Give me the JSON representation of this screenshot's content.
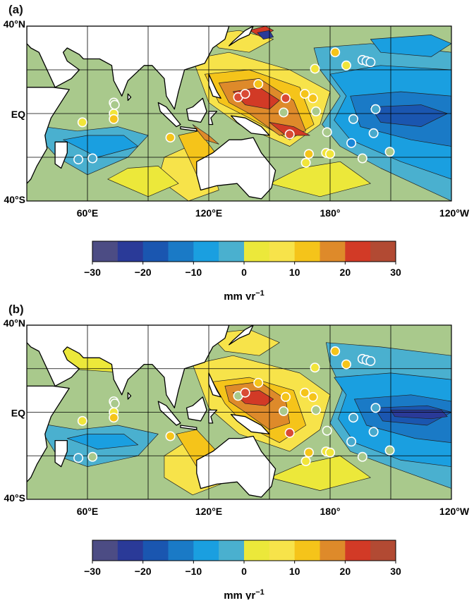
{
  "panels": [
    {
      "label": "(a)",
      "lat_labels": [
        "40°N",
        "EQ",
        "40°S"
      ],
      "lon_labels": [
        "60°E",
        "120°E",
        "180°",
        "120°W"
      ],
      "colorbar": {
        "ticks": [
          "−30",
          "−20",
          "−10",
          "0",
          "10",
          "20",
          "30"
        ],
        "unit_main": "mm yr",
        "unit_exp": "−1"
      },
      "stations": [
        {
          "lon": 55.5,
          "lat": -21,
          "color": "#48a9cd"
        },
        {
          "lon": 57.5,
          "lat": -4,
          "color": "#f1e53a"
        },
        {
          "lon": 62.5,
          "lat": -20.5,
          "color": "#48a9cd"
        },
        {
          "lon": 73,
          "lat": 5,
          "color": "#a9c98c"
        },
        {
          "lon": 73.5,
          "lat": 4,
          "color": "#a9c98c"
        },
        {
          "lon": 73,
          "lat": 0,
          "color": "#f1e53a"
        },
        {
          "lon": 73,
          "lat": -2.5,
          "color": "#f5c41a"
        },
        {
          "lon": 101,
          "lat": -11,
          "color": "#f5c41a"
        },
        {
          "lon": 134.5,
          "lat": 7.5,
          "color": "#d94a35"
        },
        {
          "lon": 138,
          "lat": 9,
          "color": "#d94a35"
        },
        {
          "lon": 144.5,
          "lat": 13.5,
          "color": "#f5c41a"
        },
        {
          "lon": 158,
          "lat": 7,
          "color": "#d94a35"
        },
        {
          "lon": 157,
          "lat": 0.5,
          "color": "#a9c98c"
        },
        {
          "lon": 160,
          "lat": -9.5,
          "color": "#d94a35"
        },
        {
          "lon": 167.5,
          "lat": 9,
          "color": "#f5c41a"
        },
        {
          "lon": 171.5,
          "lat": 7,
          "color": "#f5c41a"
        },
        {
          "lon": 169.5,
          "lat": -18.5,
          "color": "#f5c41a"
        },
        {
          "lon": 168,
          "lat": -22.5,
          "color": "#f1e53a"
        },
        {
          "lon": 173,
          "lat": 1,
          "color": "#a9c98c"
        },
        {
          "lon": 178.5,
          "lat": -8.5,
          "color": "#a9c98c"
        },
        {
          "lon": 178,
          "lat": -18,
          "color": "#f1e53a"
        },
        {
          "lon": 180,
          "lat": -18.5,
          "color": "#f1e53a"
        },
        {
          "lon": 172.5,
          "lat": 20.5,
          "color": "#f1e53a"
        },
        {
          "lon": 182.5,
          "lat": 28,
          "color": "#f5c41a"
        },
        {
          "lon": 188,
          "lat": 22,
          "color": "#f1e53a"
        },
        {
          "lon": 191.5,
          "lat": -2.5,
          "color": "#48a9cd"
        },
        {
          "lon": 190.5,
          "lat": -13.5,
          "color": "#1a86d8"
        },
        {
          "lon": 196,
          "lat": 24.5,
          "color": "#48a9cd"
        },
        {
          "lon": 198,
          "lat": 24,
          "color": "#48a9cd"
        },
        {
          "lon": 200,
          "lat": 23.5,
          "color": "#48a9cd"
        },
        {
          "lon": 202.5,
          "lat": 2,
          "color": "#48a9cd"
        },
        {
          "lon": 201.5,
          "lat": -9,
          "color": "#48a9cd"
        },
        {
          "lon": 209.5,
          "lat": -17.5,
          "color": "#a9c98c"
        },
        {
          "lon": 196,
          "lat": -20.5,
          "color": "#a9c98c"
        }
      ]
    },
    {
      "label": "(b)",
      "lat_labels": [
        "40°N",
        "EQ",
        "40°S"
      ],
      "lon_labels": [
        "60°E",
        "120°E",
        "180°",
        "120°W"
      ],
      "colorbar": {
        "ticks": [
          "−30",
          "−20",
          "−10",
          "0",
          "10",
          "20",
          "30"
        ],
        "unit_main": "mm yr",
        "unit_exp": "−1"
      },
      "stations": [
        {
          "lon": 55.5,
          "lat": -21,
          "color": "#48a9cd"
        },
        {
          "lon": 57.5,
          "lat": -4,
          "color": "#f1e53a"
        },
        {
          "lon": 62.5,
          "lat": -20.5,
          "color": "#a9c98c"
        },
        {
          "lon": 73,
          "lat": 5,
          "color": "#a9c98c"
        },
        {
          "lon": 73.5,
          "lat": 4,
          "color": "#a9c98c"
        },
        {
          "lon": 73,
          "lat": 0,
          "color": "#f1e53a"
        },
        {
          "lon": 73,
          "lat": -2.5,
          "color": "#f5c41a"
        },
        {
          "lon": 101,
          "lat": -11,
          "color": "#f5c41a"
        },
        {
          "lon": 134.5,
          "lat": 7.5,
          "color": "#a9c98c"
        },
        {
          "lon": 138,
          "lat": 9,
          "color": "#d94a35"
        },
        {
          "lon": 144.5,
          "lat": 13.5,
          "color": "#f5c41a"
        },
        {
          "lon": 158,
          "lat": 7,
          "color": "#f5c41a"
        },
        {
          "lon": 157,
          "lat": 0.5,
          "color": "#a9c98c"
        },
        {
          "lon": 160,
          "lat": -9.5,
          "color": "#d94a35"
        },
        {
          "lon": 167.5,
          "lat": 9,
          "color": "#f5c41a"
        },
        {
          "lon": 171.5,
          "lat": 7,
          "color": "#f5c41a"
        },
        {
          "lon": 169.5,
          "lat": -18.5,
          "color": "#f5c41a"
        },
        {
          "lon": 168,
          "lat": -22.5,
          "color": "#f1e53a"
        },
        {
          "lon": 173,
          "lat": 1,
          "color": "#a9c98c"
        },
        {
          "lon": 178.5,
          "lat": -8.5,
          "color": "#a9c98c"
        },
        {
          "lon": 178,
          "lat": -18,
          "color": "#f1e53a"
        },
        {
          "lon": 180,
          "lat": -18.5,
          "color": "#f1e53a"
        },
        {
          "lon": 172.5,
          "lat": 20.5,
          "color": "#f1e53a"
        },
        {
          "lon": 182.5,
          "lat": 28,
          "color": "#f5c41a"
        },
        {
          "lon": 188,
          "lat": 22,
          "color": "#f5c41a"
        },
        {
          "lon": 191.5,
          "lat": -2.5,
          "color": "#48a9cd"
        },
        {
          "lon": 190.5,
          "lat": -13.5,
          "color": "#48a9cd"
        },
        {
          "lon": 196,
          "lat": 24.5,
          "color": "#48a9cd"
        },
        {
          "lon": 198,
          "lat": 24,
          "color": "#48a9cd"
        },
        {
          "lon": 200,
          "lat": 23.5,
          "color": "#48a9cd"
        },
        {
          "lon": 202.5,
          "lat": 2,
          "color": "#48a9cd"
        },
        {
          "lon": 201.5,
          "lat": -9,
          "color": "#48a9cd"
        },
        {
          "lon": 209.5,
          "lat": -17.5,
          "color": "#a9c98c"
        },
        {
          "lon": 196,
          "lat": -20.5,
          "color": "#a9c98c"
        }
      ]
    }
  ],
  "palette": [
    "#4c4c84",
    "#2a3a98",
    "#1a56b0",
    "#1a7ac6",
    "#1a9fe0",
    "#4ab0cf",
    "#a9c98c",
    "#ece83a",
    "#f7e34a",
    "#f5c41a",
    "#de8a2a",
    "#d23a26",
    "#b24a33"
  ]
}
